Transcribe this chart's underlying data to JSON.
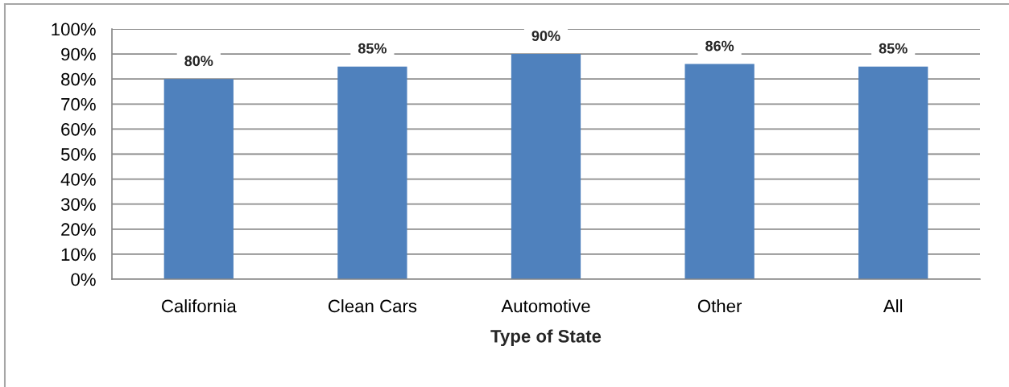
{
  "chart_data": {
    "type": "bar",
    "xlabel": "Type of State",
    "categories": [
      "California",
      "Clean Cars",
      "Automotive",
      "Other",
      "All"
    ],
    "values": [
      80,
      85,
      90,
      86,
      85
    ],
    "value_labels": [
      "80%",
      "85%",
      "90%",
      "86%",
      "85%"
    ],
    "color": "#4f81bd",
    "ylim": [
      0,
      100
    ],
    "yticks": [
      {
        "value": 0,
        "label": "0%"
      },
      {
        "value": 10,
        "label": "10%"
      },
      {
        "value": 20,
        "label": "20%"
      },
      {
        "value": 30,
        "label": "30%"
      },
      {
        "value": 40,
        "label": "40%"
      },
      {
        "value": 50,
        "label": "50%"
      },
      {
        "value": 60,
        "label": "60%"
      },
      {
        "value": 70,
        "label": "70%"
      },
      {
        "value": 80,
        "label": "80%"
      },
      {
        "value": 90,
        "label": "90%"
      },
      {
        "value": 100,
        "label": "100%"
      }
    ],
    "grid": "y"
  }
}
